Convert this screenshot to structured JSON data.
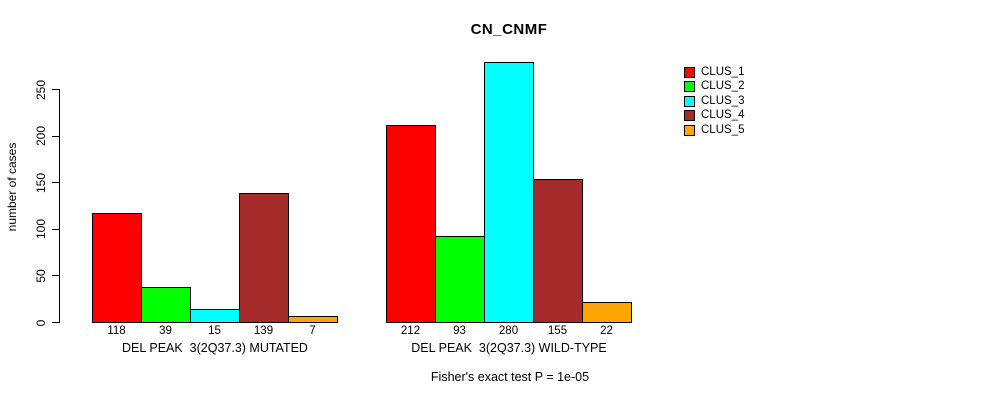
{
  "title": "CN_CNMF",
  "y_axis": {
    "label": "number of cases",
    "ticks": [
      0,
      50,
      100,
      150,
      200,
      250
    ]
  },
  "footer": "Fisher's exact test P = 1e-05",
  "chart_data": {
    "type": "bar",
    "title": "CN_CNMF",
    "xlabel": "",
    "ylabel": "number of cases",
    "ylim": [
      0,
      280
    ],
    "yticks": [
      0,
      50,
      100,
      150,
      200,
      250
    ],
    "grid": false,
    "legend_position": "right",
    "categories": [
      "DEL PEAK  3(2Q37.3) MUTATED",
      "DEL PEAK  3(2Q37.3) WILD-TYPE"
    ],
    "series": [
      {
        "name": "CLUS_1",
        "color": "#ff0000",
        "values": [
          118,
          212
        ]
      },
      {
        "name": "CLUS_2",
        "color": "#00ff00",
        "values": [
          39,
          93
        ]
      },
      {
        "name": "CLUS_3",
        "color": "#00ffff",
        "values": [
          15,
          280
        ]
      },
      {
        "name": "CLUS_4",
        "color": "#a52a2a",
        "values": [
          139,
          155
        ]
      },
      {
        "name": "CLUS_5",
        "color": "#ffa500",
        "values": [
          7,
          22
        ]
      }
    ],
    "bar_value_labels": {
      "DEL PEAK  3(2Q37.3) MUTATED": [
        118,
        39,
        15,
        139,
        7
      ],
      "DEL PEAK  3(2Q37.3) WILD-TYPE": [
        212,
        93,
        280,
        155,
        22
      ]
    },
    "annotation": "Fisher's exact test P = 1e-05"
  }
}
